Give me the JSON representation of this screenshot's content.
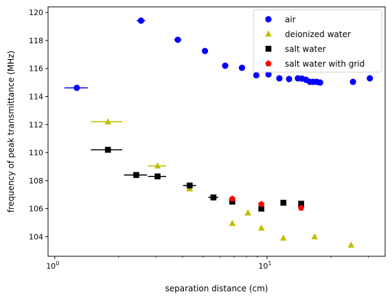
{
  "chart_data": {
    "type": "scatter",
    "title": "",
    "xlabel": "separation distance (cm)",
    "ylabel": "frequency of peak transmittance (MHz)",
    "xscale": "log",
    "xlim": [
      0.93,
      36
    ],
    "ylim": [
      102.6,
      120.4
    ],
    "x_ticks": [
      {
        "value": 1,
        "base": "10",
        "exp": "0"
      },
      {
        "value": 10,
        "base": "10",
        "exp": "1"
      }
    ],
    "y_ticks": [
      104,
      106,
      108,
      110,
      112,
      114,
      116,
      118,
      120
    ],
    "grid": false,
    "legend_position": "top-right",
    "series": [
      {
        "name": "air",
        "color": "#0000ff",
        "marker": "circle",
        "points": [
          {
            "x": 1.27,
            "y": 114.62,
            "xerr": 0.16
          },
          {
            "x": 2.55,
            "y": 119.42,
            "xerr": 0.12
          },
          {
            "x": 3.8,
            "y": 118.05,
            "xerr": 0.15
          },
          {
            "x": 5.1,
            "y": 117.25
          },
          {
            "x": 6.35,
            "y": 116.2
          },
          {
            "x": 7.62,
            "y": 116.05
          },
          {
            "x": 8.9,
            "y": 115.52
          },
          {
            "x": 10.16,
            "y": 115.58
          },
          {
            "x": 11.43,
            "y": 115.3
          },
          {
            "x": 12.7,
            "y": 115.25
          },
          {
            "x": 13.97,
            "y": 115.3
          },
          {
            "x": 14.6,
            "y": 115.28
          },
          {
            "x": 15.24,
            "y": 115.2
          },
          {
            "x": 15.9,
            "y": 115.05
          },
          {
            "x": 16.5,
            "y": 115.05
          },
          {
            "x": 17.15,
            "y": 115.05
          },
          {
            "x": 17.78,
            "y": 115.0
          },
          {
            "x": 25.4,
            "y": 115.05
          },
          {
            "x": 30.5,
            "y": 115.3
          }
        ]
      },
      {
        "name": "deionized water",
        "color": "#bfbf00",
        "marker": "triangle",
        "points": [
          {
            "x": 1.78,
            "y": 112.2,
            "xerr": 0.3
          },
          {
            "x": 3.05,
            "y": 109.05,
            "xerr": 0.3
          },
          {
            "x": 4.32,
            "y": 107.42
          },
          {
            "x": 6.86,
            "y": 104.95
          },
          {
            "x": 8.13,
            "y": 105.7
          },
          {
            "x": 9.4,
            "y": 104.62
          },
          {
            "x": 11.94,
            "y": 103.9
          },
          {
            "x": 16.76,
            "y": 104.0
          },
          {
            "x": 24.9,
            "y": 103.4
          }
        ]
      },
      {
        "name": "salt water",
        "color": "#000000",
        "marker": "square",
        "points": [
          {
            "x": 1.78,
            "y": 110.2,
            "xerr": 0.3
          },
          {
            "x": 2.42,
            "y": 108.4,
            "xerr": 0.3
          },
          {
            "x": 3.05,
            "y": 108.3,
            "xerr": 0.3
          },
          {
            "x": 4.32,
            "y": 107.65,
            "xerr": 0.3
          },
          {
            "x": 5.59,
            "y": 106.8,
            "xerr": 0.3
          },
          {
            "x": 6.86,
            "y": 106.5
          },
          {
            "x": 9.4,
            "y": 106.0
          },
          {
            "x": 11.94,
            "y": 106.42
          },
          {
            "x": 14.48,
            "y": 106.35
          }
        ]
      },
      {
        "name": "salt water with grid",
        "color": "#ff0000",
        "marker": "pentagon",
        "points": [
          {
            "x": 6.86,
            "y": 106.7
          },
          {
            "x": 9.4,
            "y": 106.32
          },
          {
            "x": 14.48,
            "y": 106.05
          }
        ]
      }
    ]
  }
}
